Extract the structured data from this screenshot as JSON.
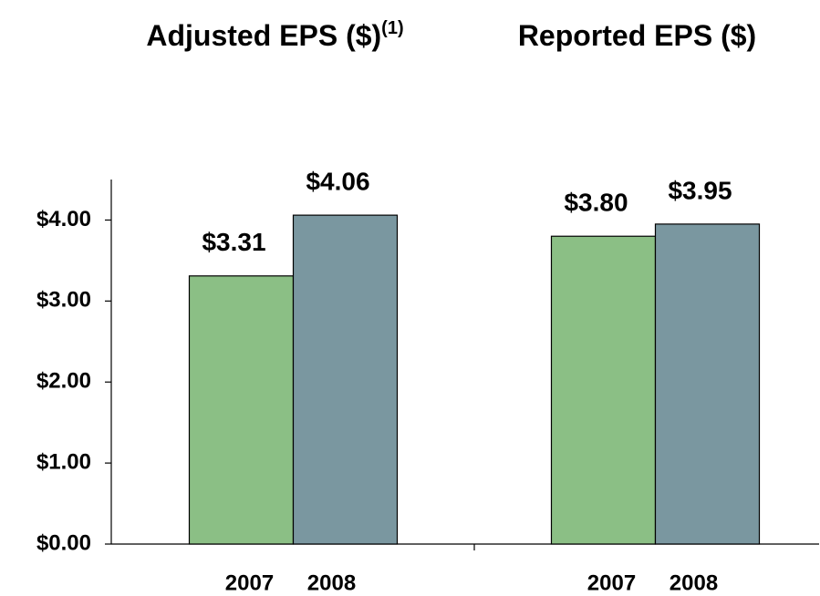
{
  "chart_data": {
    "type": "bar",
    "categories": [
      "Adjusted EPS ($)",
      "Reported EPS ($)"
    ],
    "annotations": [
      "(1)"
    ],
    "series": [
      {
        "name": "2007",
        "color": "#8bbf85",
        "values": [
          3.31,
          3.8
        ],
        "value_labels": [
          "$3.31",
          "$3.80"
        ]
      },
      {
        "name": "2008",
        "color": "#7a97a0",
        "values": [
          4.06,
          3.95
        ],
        "value_labels": [
          "$4.06",
          "$3.95"
        ]
      }
    ],
    "ylim": [
      0,
      4.5
    ],
    "yticks": [
      {
        "value": 0,
        "label": "$0.00"
      },
      {
        "value": 1,
        "label": "$1.00"
      },
      {
        "value": 2,
        "label": "$2.00"
      },
      {
        "value": 3,
        "label": "$3.00"
      },
      {
        "value": 4,
        "label": "$4.00"
      }
    ]
  }
}
